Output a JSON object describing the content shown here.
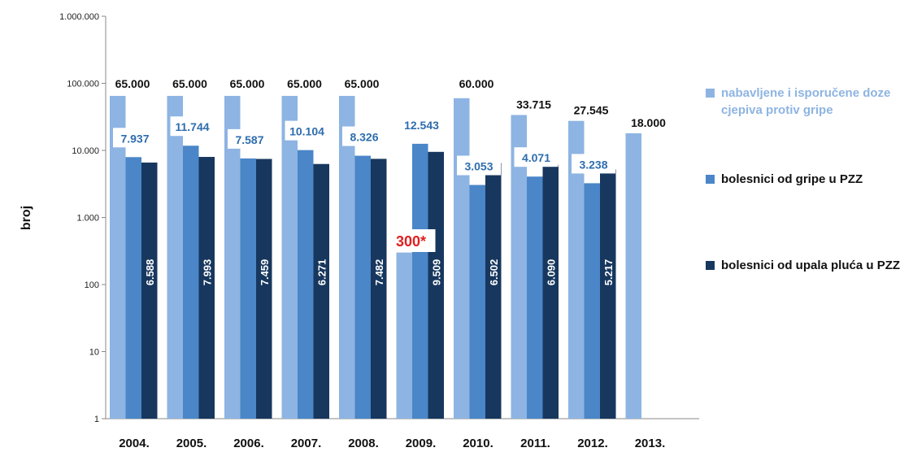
{
  "chart_data": {
    "type": "bar",
    "scale": "log",
    "ylabel": "broj",
    "ylim": [
      1,
      1000000
    ],
    "y_ticks": [
      1,
      10,
      100,
      1000,
      10000,
      100000,
      1000000
    ],
    "y_tick_labels": [
      "1",
      "10",
      "100",
      "1.000",
      "10.000",
      "100.000",
      "1.000.000"
    ],
    "categories": [
      "2004.",
      "2005.",
      "2006.",
      "2007.",
      "2008.",
      "2009.",
      "2010.",
      "2011.",
      "2012.",
      "2013."
    ],
    "series": [
      {
        "name": "nabavljene i isporučene doze cjepiva protiv gripe",
        "color": "#8DB4E2",
        "values": [
          65000,
          65000,
          65000,
          65000,
          65000,
          300,
          60000,
          33715,
          27545,
          18000
        ],
        "labels": [
          "65.000",
          "65.000",
          "65.000",
          "65.000",
          "65.000",
          "300*",
          "60.000",
          "33.715",
          "27.545",
          "18.000"
        ]
      },
      {
        "name": "bolesnici od gripe u PZZ",
        "color": "#4A86C8",
        "values": [
          7937,
          11744,
          7587,
          10104,
          8326,
          12543,
          3053,
          4071,
          3238,
          null
        ],
        "labels": [
          "7.937",
          "11.744",
          "7.587",
          "10.104",
          "8.326",
          "12.543",
          "3.053",
          "4.071",
          "3.238",
          ""
        ]
      },
      {
        "name": "bolesnici od upala pluća u PZZ",
        "color": "#17375E",
        "values": [
          6588,
          7993,
          7459,
          6271,
          7482,
          9509,
          6502,
          6090,
          5217,
          null
        ],
        "labels": [
          "6.588",
          "7.993",
          "7.459",
          "6.271",
          "7.482",
          "9.509",
          "6.502",
          "6.090",
          "5.217",
          ""
        ]
      }
    ],
    "legend_position": "right",
    "grid": false
  }
}
